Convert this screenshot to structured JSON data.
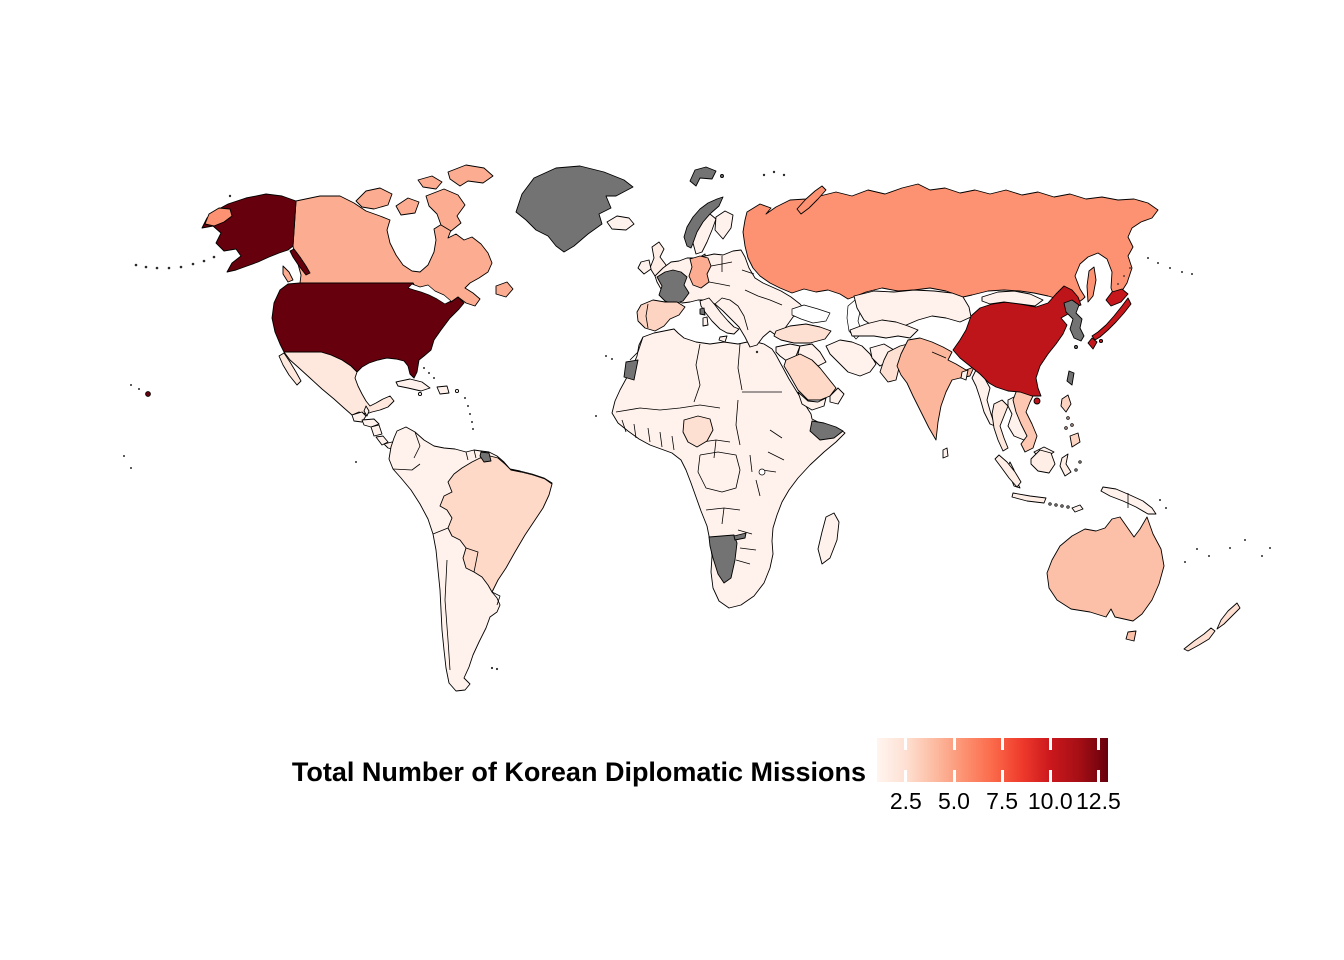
{
  "chart_data": {
    "type": "choropleth",
    "title": "Total Number of Korean Diplomatic Missions",
    "colorbar": {
      "ticks": [
        2.5,
        5.0,
        7.5,
        10.0,
        12.5
      ],
      "tick_labels": [
        "2.5",
        "5.0",
        "7.5",
        "10.0",
        "12.5"
      ],
      "domain": [
        1,
        13
      ],
      "palette_name": "Reds",
      "palette_stops": [
        "#fff5f0",
        "#fee0d2",
        "#fcbba1",
        "#fc9272",
        "#fb6a4a",
        "#ef3b2c",
        "#cb181d",
        "#a50f15",
        "#67000d"
      ],
      "na_color": "#737373",
      "legend_position": "bottom-right"
    },
    "countries": {
      "united-states": 13,
      "china": 10.5,
      "japan": 10.2,
      "russia": 5.5,
      "canada": 4.5,
      "germany": 4.5,
      "india": 4.2,
      "australia": 3.8,
      "vietnam": 3.5,
      "spain": 3,
      "philippines": 3,
      "brazil": 2.8,
      "saudi-arabia": 2.8,
      "nigeria": 2.5,
      "pakistan": 2.5,
      "turkey": 2.5,
      "new-zealand": 2.5,
      "mexico": 2,
      "thailand": 2,
      "united-kingdom": 1.5,
      "indonesia": 1.5
    },
    "default_value": 1.2,
    "na_countries": [
      "greenland",
      "france",
      "norway",
      "svalbard",
      "korea",
      "taiwan",
      "namibia",
      "somalia",
      "western-sahara",
      "french-guiana"
    ]
  }
}
